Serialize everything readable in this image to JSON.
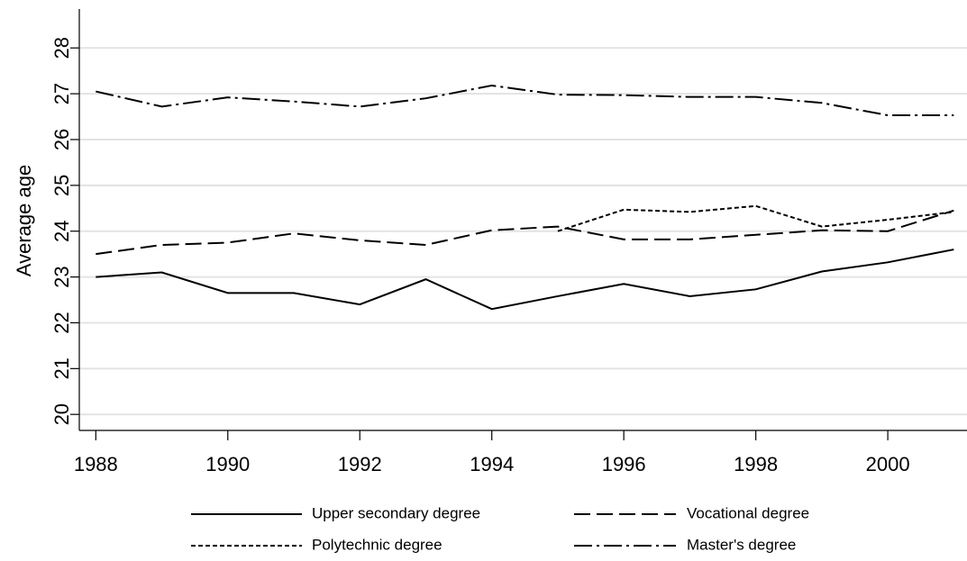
{
  "chart_data": {
    "type": "line",
    "y_label": "Average age",
    "x": [
      1988,
      1989,
      1990,
      1991,
      1992,
      1993,
      1994,
      1995,
      1996,
      1997,
      1998,
      1999,
      2000,
      2001
    ],
    "series": [
      {
        "name": "Upper secondary degree",
        "color": "#000000",
        "dash": "solid",
        "values": [
          23.0,
          23.1,
          22.65,
          22.65,
          22.4,
          22.95,
          22.3,
          22.58,
          22.85,
          22.58,
          22.73,
          23.12,
          23.32,
          23.6
        ]
      },
      {
        "name": "Vocational degree",
        "color": "#000000",
        "dash": "18 7",
        "values": [
          23.5,
          23.7,
          23.75,
          23.95,
          23.8,
          23.7,
          24.02,
          24.1,
          23.82,
          23.82,
          23.92,
          24.02,
          24.0,
          24.45
        ]
      },
      {
        "name": "Polytechnic degree",
        "color": "#000000",
        "dash": "5 3",
        "values": [
          null,
          null,
          null,
          null,
          null,
          null,
          null,
          24.0,
          24.47,
          24.42,
          24.55,
          24.1,
          24.25,
          24.42
        ]
      },
      {
        "name": "Master's degree",
        "color": "#000000",
        "dash": "20 5 3 5",
        "values": [
          27.05,
          26.72,
          26.92,
          26.83,
          26.72,
          26.9,
          27.18,
          26.98,
          26.97,
          26.93,
          26.93,
          26.8,
          26.53,
          26.53
        ]
      }
    ],
    "xlim": [
      1987.75,
      2001.2
    ],
    "xticks": [
      1988,
      1990,
      1992,
      1994,
      1996,
      1998,
      2000
    ],
    "ylim": [
      19.65,
      28.85
    ],
    "yticks": [
      20,
      21,
      22,
      23,
      24,
      25,
      26,
      27,
      28
    ],
    "grid": true,
    "legend": "bottom"
  }
}
